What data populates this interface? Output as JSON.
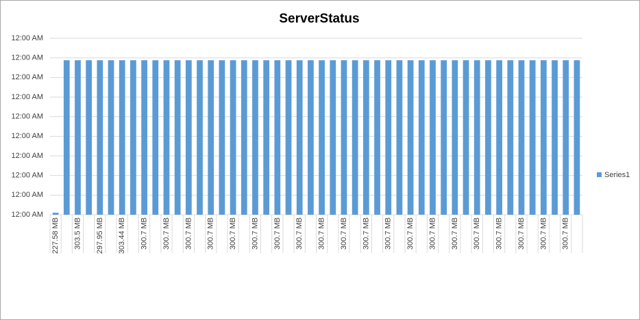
{
  "chart_data": {
    "type": "bar",
    "title": "ServerStatus",
    "categories": [
      "227.58 MB",
      null,
      "303.5 MB",
      null,
      "297.95 MB",
      null,
      "303.44 MB",
      null,
      "300.7 MB",
      null,
      "300.7 MB",
      null,
      "300.7 MB",
      null,
      "300.7 MB",
      null,
      "300.7 MB",
      null,
      "300.7 MB",
      null,
      "300.7 MB",
      null,
      "300.7 MB",
      null,
      "300.7 MB",
      null,
      "300.7 MB",
      null,
      "300.7 MB",
      null,
      "300.7 MB",
      null,
      "300.7 MB",
      null,
      "300.7 MB",
      null,
      "300.7 MB",
      null,
      "300.7 MB",
      null,
      "300.7 MB",
      null,
      "300.7 MB",
      null,
      "300.7 MB",
      null,
      "300.7 MB",
      null
    ],
    "series": [
      {
        "name": "Series1",
        "color": "#5b9bd5",
        "values": [
          1e-05,
          0.000788,
          0.000788,
          0.000788,
          0.000788,
          0.000788,
          0.000788,
          0.000788,
          0.000788,
          0.000788,
          0.000788,
          0.000788,
          0.000788,
          0.000788,
          0.000788,
          0.000788,
          0.000788,
          0.000788,
          0.000788,
          0.000788,
          0.000788,
          0.000788,
          0.000788,
          0.000788,
          0.000788,
          0.000788,
          0.000788,
          0.000788,
          0.000788,
          0.000788,
          0.000788,
          0.000788,
          0.000788,
          0.000788,
          0.000788,
          0.000788,
          0.000788,
          0.000788,
          0.000788,
          0.000788,
          0.000788,
          0.000788,
          0.000788,
          0.000788,
          0.000788,
          0.000788,
          0.000788,
          0.000788
        ]
      }
    ],
    "ylim": [
      0,
      0.0009
    ],
    "yticks": [
      {
        "value": 0,
        "label": "12:00 AM"
      },
      {
        "value": 0.0001,
        "label": "12:00 AM"
      },
      {
        "value": 0.0002,
        "label": "12:00 AM"
      },
      {
        "value": 0.0003,
        "label": "12:00 AM"
      },
      {
        "value": 0.0004,
        "label": "12:00 AM"
      },
      {
        "value": 0.0005,
        "label": "12:00 AM"
      },
      {
        "value": 0.0006,
        "label": "12:00 AM"
      },
      {
        "value": 0.0007,
        "label": "12:00 AM"
      },
      {
        "value": 0.0008,
        "label": "12:00 AM"
      },
      {
        "value": 0.0009,
        "label": "12:00 AM"
      }
    ],
    "grid": true,
    "legend": "right"
  }
}
